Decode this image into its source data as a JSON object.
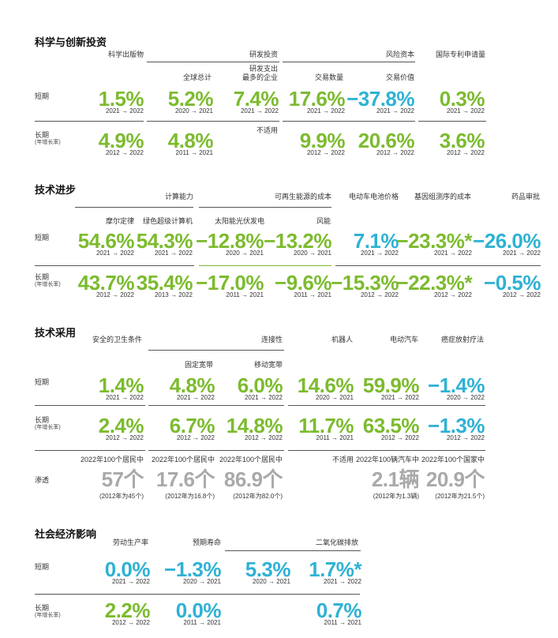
{
  "s1": {
    "title": "科学与创新投资",
    "h_pub": "科学出版物",
    "h_rd": "研发投资",
    "h_vc": "风险资本",
    "h_pat": "国际专利申请量",
    "h_total": "全球总计",
    "h_top": "研发支出\n最多的企业",
    "h_deals": "交易数量",
    "h_dealval": "交易价值",
    "short": "短期",
    "long": "长期",
    "long_note": "(年增长率)",
    "na": "不适用",
    "short_vals": [
      {
        "v": "1.5%",
        "y": "2021 → 2022"
      },
      {
        "v": "5.2%",
        "y": "2020 → 2021"
      },
      {
        "v": "7.4%",
        "y": "2021 → 2022"
      },
      {
        "v": "17.6%",
        "y": "2021 → 2022"
      },
      {
        "v": "−37.8%",
        "y": "2021 → 2022"
      },
      {
        "v": "0.3%",
        "y": "2021 → 2022"
      }
    ],
    "long_vals": [
      {
        "v": "4.9%",
        "y": "2012 → 2022"
      },
      {
        "v": "4.8%",
        "y": "2011 → 2021"
      },
      {
        "v": "9.9%",
        "y": "2012 → 2022"
      },
      {
        "v": "20.6%",
        "y": "2012 → 2022"
      },
      {
        "v": "3.6%",
        "y": "2012 → 2022"
      }
    ]
  },
  "s2": {
    "title": "技术进步",
    "h_compute": "计算能力",
    "h_renew": "可再生能源的成本",
    "h_battery": "电动车电池价格",
    "h_genome": "基因组测序的成本",
    "h_drug": "药品审批",
    "h_moore": "摩尔定律",
    "h_green": "绿色超级计算机",
    "h_solar": "太阳能光伏发电",
    "h_wind": "风能",
    "short": "短期",
    "long": "长期",
    "long_note": "(年增长率)",
    "short_vals": [
      {
        "v": "54.6%",
        "y": "2021 → 2022"
      },
      {
        "v": "54.3%",
        "y": "2021 → 2022"
      },
      {
        "v": "−12.8%",
        "y": "2020 → 2021"
      },
      {
        "v": "−13.2%",
        "y": "2020 → 2021"
      },
      {
        "v": "7.1%",
        "y": "2021 → 2022"
      },
      {
        "v": "−23.3%*",
        "y": "2021 → 2022"
      },
      {
        "v": "−26.0%",
        "y": "2021 → 2022"
      }
    ],
    "long_vals": [
      {
        "v": "43.7%",
        "y": "2012 → 2022"
      },
      {
        "v": "35.4%",
        "y": "2013 → 2022"
      },
      {
        "v": "−17.0%",
        "y": "2011 → 2021"
      },
      {
        "v": "−9.6%",
        "y": "2011 → 2021"
      },
      {
        "v": "−15.3%",
        "y": "2012 → 2022"
      },
      {
        "v": "−22.3%*",
        "y": "2012 → 2022"
      },
      {
        "v": "−0.5%",
        "y": "2012 → 2022"
      }
    ]
  },
  "s3": {
    "title": "技术采用",
    "h_sanit": "安全的卫生条件",
    "h_conn": "连接性",
    "h_robot": "机器人",
    "h_ev": "电动汽车",
    "h_cancer": "癌症放射疗法",
    "h_fixed": "固定宽带",
    "h_mobile": "移动宽带",
    "short": "短期",
    "long": "长期",
    "long_note": "(年增长率)",
    "pen": "渗透",
    "short_vals": [
      {
        "v": "1.4%",
        "y": "2021 → 2022"
      },
      {
        "v": "4.8%",
        "y": "2021 → 2022"
      },
      {
        "v": "6.0%",
        "y": "2021 → 2022"
      },
      {
        "v": "14.6%",
        "y": "2020 → 2021"
      },
      {
        "v": "59.9%",
        "y": "2021 → 2022"
      },
      {
        "v": "−1.4%",
        "y": "2020 → 2022"
      }
    ],
    "long_vals": [
      {
        "v": "2.4%",
        "y": "2012 → 2022"
      },
      {
        "v": "6.7%",
        "y": "2012 → 2022"
      },
      {
        "v": "14.8%",
        "y": "2012 → 2022"
      },
      {
        "v": "11.7%",
        "y": "2011 → 2021"
      },
      {
        "v": "63.5%",
        "y": "2012 → 2022"
      },
      {
        "v": "−1.3%",
        "y": "2012 → 2022"
      }
    ],
    "pen_vals": [
      {
        "h": "2022年100个居民中",
        "v": "57个",
        "n": "(2012年为45个)"
      },
      {
        "h": "2022年100个居民中",
        "v": "17.6个",
        "n": "(2012年为16.8个)"
      },
      {
        "h": "2022年100个居民中",
        "v": "86.9个",
        "n": "(2012年为82.0个)"
      },
      {
        "h": "不适用",
        "v": "",
        "n": ""
      },
      {
        "h": "2022年100辆汽车中",
        "v": "2.1辆",
        "n": "(2012年为1.3辆)"
      },
      {
        "h": "2022年100个国家中",
        "v": "20.9个",
        "n": "(2012年为21.5个)"
      }
    ]
  },
  "s4": {
    "title": "社会经济影响",
    "h_labor": "劳动生产率",
    "h_life": "预期寿命",
    "h_co2": "二氧化碳排放",
    "short": "短期",
    "long": "长期",
    "long_note": "(年增长率)",
    "short_vals": [
      {
        "v": "0.0%",
        "y": "2021 → 2022"
      },
      {
        "v": "−1.3%",
        "y": "2020 → 2021"
      },
      {
        "v": "5.3%",
        "y": "2020 → 2021"
      },
      {
        "v": "1.7%*",
        "y": "2021 → 2022"
      }
    ],
    "long_vals": [
      {
        "v": "2.2%",
        "y": "2012 → 2022"
      },
      {
        "v": "0.0%",
        "y": "2011 → 2021"
      },
      {
        "v": "0.7%",
        "y": "2011 → 2021"
      }
    ]
  }
}
